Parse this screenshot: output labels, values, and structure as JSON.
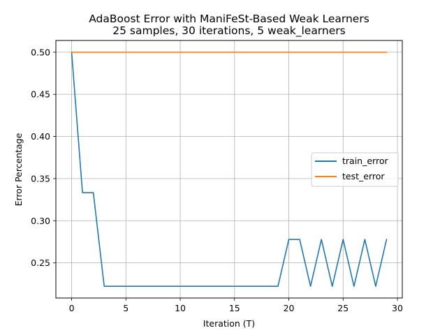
{
  "chart_data": {
    "type": "line",
    "title": [
      "AdaBoost Error with ManiFeSt-Based Weak Learners",
      "25 samples, 30 iterations, 5 weak_learners"
    ],
    "xlabel": "Iteration (T)",
    "ylabel": "Error Percentage",
    "xlim": [
      -1.45,
      30.45
    ],
    "ylim": [
      0.2083,
      0.5139
    ],
    "xticks": [
      0,
      5,
      10,
      15,
      20,
      25,
      30
    ],
    "xtick_labels": [
      "0",
      "5",
      "10",
      "15",
      "20",
      "25",
      "30"
    ],
    "yticks": [
      0.25,
      0.3,
      0.35,
      0.4,
      0.45,
      0.5
    ],
    "ytick_labels": [
      "0.25",
      "0.30",
      "0.35",
      "0.40",
      "0.45",
      "0.50"
    ],
    "grid": true,
    "legend": "center-right",
    "x": [
      0,
      1,
      2,
      3,
      4,
      5,
      6,
      7,
      8,
      9,
      10,
      11,
      12,
      13,
      14,
      15,
      16,
      17,
      18,
      19,
      20,
      21,
      22,
      23,
      24,
      25,
      26,
      27,
      28,
      29
    ],
    "series": [
      {
        "name": "train_error",
        "color": "#1f77b4",
        "values": [
          0.5,
          0.3333,
          0.3333,
          0.2222,
          0.2222,
          0.2222,
          0.2222,
          0.2222,
          0.2222,
          0.2222,
          0.2222,
          0.2222,
          0.2222,
          0.2222,
          0.2222,
          0.2222,
          0.2222,
          0.2222,
          0.2222,
          0.2222,
          0.2778,
          0.2778,
          0.2222,
          0.2778,
          0.2222,
          0.2778,
          0.2222,
          0.2778,
          0.2222,
          0.2778
        ]
      },
      {
        "name": "test_error",
        "color": "#ff7f0e",
        "values": [
          0.5,
          0.5,
          0.5,
          0.5,
          0.5,
          0.5,
          0.5,
          0.5,
          0.5,
          0.5,
          0.5,
          0.5,
          0.5,
          0.5,
          0.5,
          0.5,
          0.5,
          0.5,
          0.5,
          0.5,
          0.5,
          0.5,
          0.5,
          0.5,
          0.5,
          0.5,
          0.5,
          0.5,
          0.5,
          0.5
        ]
      }
    ]
  }
}
